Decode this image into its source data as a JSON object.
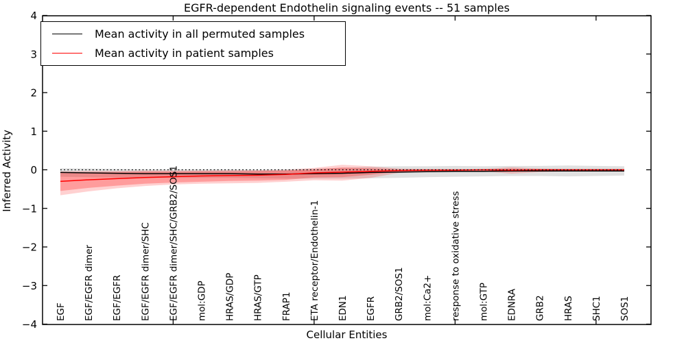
{
  "figure": {
    "title": "EGFR-dependent Endothelin signaling events -- 51 samples",
    "xlabel": "Cellular Entities",
    "ylabel": "Inferred Activity"
  },
  "legend": {
    "items": [
      {
        "label": "Mean activity in all permuted samples",
        "color": "#000000"
      },
      {
        "label": "Mean activity in patient samples",
        "color": "#ff0000"
      }
    ]
  },
  "chart_data": {
    "type": "line",
    "title": "EGFR-dependent Endothelin signaling events -- 51 samples",
    "xlabel": "Cellular Entities",
    "ylabel": "Inferred Activity",
    "ylim": [
      -4,
      4
    ],
    "yticks": [
      4,
      3,
      2,
      1,
      0,
      -1,
      -2,
      -3,
      -4
    ],
    "grid": false,
    "legend_position": "upper left",
    "zero_line": {
      "y": 0,
      "style": "dotted",
      "color": "#000000"
    },
    "categories": [
      "EGF",
      "EGF/EGFR dimer",
      "EGF/EGFR",
      "EGF/EGFR dimer/SHC",
      "EGF/EGFR dimer/SHC/GRB2/SOS1",
      "mol:GDP",
      "HRAS/GDP",
      "HRAS/GTP",
      "FRAP1",
      "ETA receptor/Endothelin-1",
      "EDN1",
      "EGFR",
      "GRB2/SOS1",
      "mol:Ca2+",
      "response to oxidative stress",
      "mol:GTP",
      "EDNRA",
      "GRB2",
      "HRAS",
      "SHC1",
      "SOS1"
    ],
    "series": [
      {
        "name": "Mean activity in all permuted samples",
        "color": "#000000",
        "line_width": 1.5,
        "values": [
          -0.07,
          -0.08,
          -0.09,
          -0.1,
          -0.1,
          -0.1,
          -0.1,
          -0.11,
          -0.11,
          -0.1,
          -0.09,
          -0.07,
          -0.06,
          -0.05,
          -0.04,
          -0.04,
          -0.03,
          -0.03,
          -0.03,
          -0.03,
          -0.03
        ],
        "band_upper": [
          0.04,
          0.03,
          0.02,
          0.01,
          0.01,
          0.01,
          0.01,
          0.0,
          0.01,
          0.03,
          0.05,
          0.08,
          0.09,
          0.09,
          0.1,
          0.09,
          0.1,
          0.1,
          0.11,
          0.1,
          0.09
        ],
        "band_lower": [
          -0.18,
          -0.19,
          -0.2,
          -0.21,
          -0.21,
          -0.21,
          -0.21,
          -0.22,
          -0.23,
          -0.23,
          -0.23,
          -0.22,
          -0.21,
          -0.19,
          -0.18,
          -0.17,
          -0.16,
          -0.16,
          -0.17,
          -0.16,
          -0.15
        ],
        "band_color": "rgba(0,0,0,0.12)"
      },
      {
        "name": "Mean activity in patient samples",
        "color": "#ff0000",
        "line_width": 1.5,
        "values": [
          -0.3,
          -0.26,
          -0.23,
          -0.2,
          -0.18,
          -0.16,
          -0.15,
          -0.14,
          -0.12,
          -0.08,
          -0.06,
          -0.04,
          -0.02,
          -0.01,
          -0.01,
          0.0,
          -0.01,
          0.0,
          0.0,
          0.0,
          0.0
        ],
        "band_upper": [
          -0.04,
          -0.03,
          -0.03,
          -0.02,
          -0.02,
          -0.02,
          -0.01,
          -0.01,
          0.0,
          0.05,
          0.13,
          0.09,
          0.03,
          0.02,
          0.02,
          0.02,
          0.07,
          0.03,
          0.02,
          0.02,
          0.02
        ],
        "band_lower": [
          -0.66,
          -0.56,
          -0.48,
          -0.42,
          -0.38,
          -0.36,
          -0.35,
          -0.34,
          -0.31,
          -0.27,
          -0.28,
          -0.21,
          -0.08,
          -0.05,
          -0.04,
          -0.04,
          -0.1,
          -0.06,
          -0.04,
          -0.03,
          -0.03
        ],
        "inner_band_upper": [
          -0.08,
          -0.07,
          -0.06,
          -0.05,
          -0.05,
          -0.04,
          -0.04,
          -0.03,
          -0.02,
          0.01,
          0.06,
          0.04,
          0.01,
          0.01,
          0.01,
          0.01,
          0.03,
          0.01,
          0.01,
          0.01,
          0.01
        ],
        "inner_band_lower": [
          -0.55,
          -0.47,
          -0.41,
          -0.36,
          -0.33,
          -0.31,
          -0.29,
          -0.28,
          -0.26,
          -0.2,
          -0.19,
          -0.13,
          -0.05,
          -0.03,
          -0.02,
          -0.02,
          -0.05,
          -0.03,
          -0.02,
          -0.02,
          -0.02
        ],
        "band_color": "rgba(255,0,0,0.18)",
        "inner_band_color": "rgba(255,0,0,0.25)"
      }
    ]
  }
}
